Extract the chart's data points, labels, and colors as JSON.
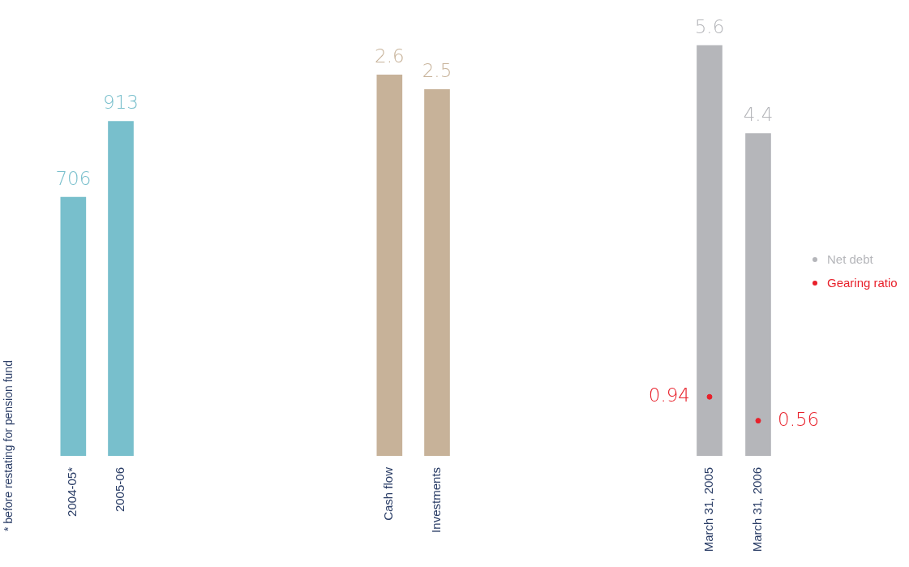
{
  "chart_data": [
    {
      "type": "bar",
      "categories": [
        "2004-05*",
        "2005-06"
      ],
      "values": [
        706,
        913
      ],
      "color": "#78bfcc",
      "data_labels": true,
      "tick_labels": "x",
      "grid": false,
      "annotations": [
        "* before restating for pension fund"
      ]
    },
    {
      "type": "bar",
      "categories": [
        "Cash flow",
        "Investments"
      ],
      "values": [
        2.6,
        2.5
      ],
      "color": "#c7b299",
      "data_labels": true,
      "tick_labels": "x",
      "grid": false
    },
    {
      "type": "bar",
      "categories": [
        "March 31, 2005",
        "March 31, 2006"
      ],
      "series": [
        {
          "name": "Net debt",
          "color": "#b5b6ba",
          "values": [
            5.6,
            4.4
          ]
        },
        {
          "name": "Gearing ratio",
          "type": "scatter",
          "axis": "y2",
          "color": "#e8202a",
          "values": [
            0.94,
            0.56
          ]
        }
      ],
      "data_labels": true,
      "tick_labels": "x",
      "grid": false,
      "legend": "right",
      "marker": "circle"
    }
  ]
}
